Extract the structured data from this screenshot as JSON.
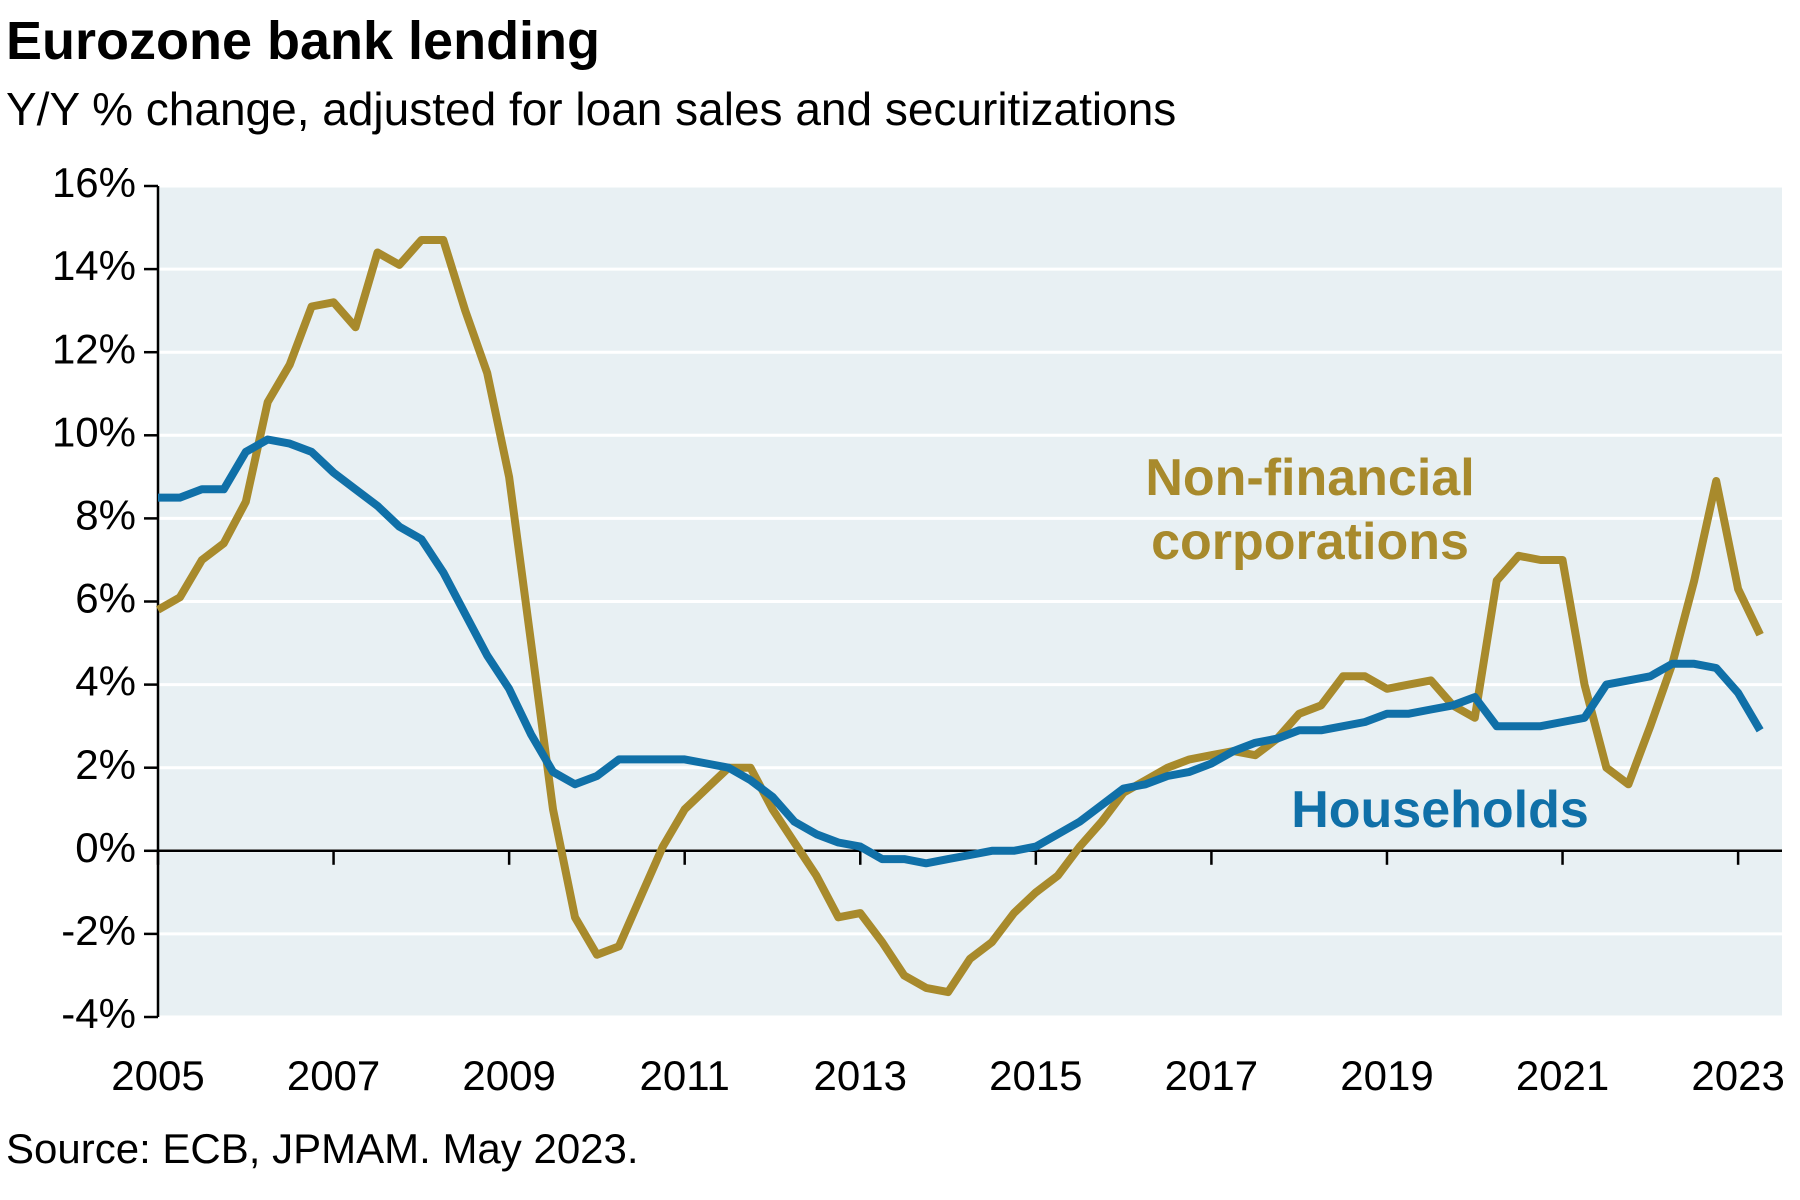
{
  "chart_data": {
    "type": "line",
    "title": "Eurozone bank lending",
    "subtitle": "Y/Y % change, adjusted for loan sales and securitizations",
    "source": "Source: ECB, JPMAM. May 2023.",
    "x": [
      2005,
      2005.25,
      2005.5,
      2005.75,
      2006,
      2006.25,
      2006.5,
      2006.75,
      2007,
      2007.25,
      2007.5,
      2007.75,
      2008,
      2008.25,
      2008.5,
      2008.75,
      2009,
      2009.25,
      2009.5,
      2009.75,
      2010,
      2010.25,
      2010.5,
      2010.75,
      2011,
      2011.25,
      2011.5,
      2011.75,
      2012,
      2012.25,
      2012.5,
      2012.75,
      2013,
      2013.25,
      2013.5,
      2013.75,
      2014,
      2014.25,
      2014.5,
      2014.75,
      2015,
      2015.25,
      2015.5,
      2015.75,
      2016,
      2016.25,
      2016.5,
      2016.75,
      2017,
      2017.25,
      2017.5,
      2017.75,
      2018,
      2018.25,
      2018.5,
      2018.75,
      2019,
      2019.25,
      2019.5,
      2019.75,
      2020,
      2020.25,
      2020.5,
      2020.75,
      2021,
      2021.25,
      2021.5,
      2021.75,
      2022,
      2022.25,
      2022.5,
      2022.75,
      2023,
      2023.25
    ],
    "series": [
      {
        "name": "Non-financial corporations",
        "color": "#a88a2c",
        "values": [
          5.8,
          6.1,
          7.0,
          7.4,
          8.4,
          10.8,
          11.7,
          13.1,
          13.2,
          12.6,
          14.4,
          14.1,
          14.7,
          14.7,
          13.0,
          11.5,
          9.0,
          5.0,
          1.0,
          -1.6,
          -2.5,
          -2.3,
          -1.1,
          0.1,
          1.0,
          1.5,
          2.0,
          2.0,
          1.0,
          0.2,
          -0.6,
          -1.6,
          -1.5,
          -2.2,
          -3.0,
          -3.3,
          -3.4,
          -2.6,
          -2.2,
          -1.5,
          -1.0,
          -0.6,
          0.1,
          0.7,
          1.4,
          1.7,
          2.0,
          2.2,
          2.3,
          2.4,
          2.3,
          2.7,
          3.3,
          3.5,
          4.2,
          4.2,
          3.9,
          4.0,
          4.1,
          3.5,
          3.2,
          6.5,
          7.1,
          7.0,
          7.0,
          4.0,
          2.0,
          1.6,
          3.0,
          4.5,
          6.5,
          8.9,
          6.3,
          5.2
        ]
      },
      {
        "name": "Households",
        "color": "#1070a8",
        "values": [
          8.5,
          8.5,
          8.7,
          8.7,
          9.6,
          9.9,
          9.8,
          9.6,
          9.1,
          8.7,
          8.3,
          7.8,
          7.5,
          6.7,
          5.7,
          4.7,
          3.9,
          2.8,
          1.9,
          1.6,
          1.8,
          2.2,
          2.2,
          2.2,
          2.2,
          2.1,
          2.0,
          1.7,
          1.3,
          0.7,
          0.4,
          0.2,
          0.1,
          -0.2,
          -0.2,
          -0.3,
          -0.2,
          -0.1,
          0.0,
          0.0,
          0.1,
          0.4,
          0.7,
          1.1,
          1.5,
          1.6,
          1.8,
          1.9,
          2.1,
          2.4,
          2.6,
          2.7,
          2.9,
          2.9,
          3.0,
          3.1,
          3.3,
          3.3,
          3.4,
          3.5,
          3.7,
          3.0,
          3.0,
          3.0,
          3.1,
          3.2,
          4.0,
          4.1,
          4.2,
          4.5,
          4.5,
          4.4,
          3.8,
          2.9
        ]
      }
    ],
    "xlim": [
      2005,
      2023.5
    ],
    "xticks": [
      2005,
      2007,
      2009,
      2011,
      2013,
      2015,
      2017,
      2019,
      2021,
      2023
    ],
    "ylim": [
      -4,
      16
    ],
    "yticks": [
      {
        "value": -4,
        "label": "-4%"
      },
      {
        "value": -2,
        "label": "-2%"
      },
      {
        "value": 0,
        "label": "0%"
      },
      {
        "value": 2,
        "label": "2%"
      },
      {
        "value": 4,
        "label": "4%"
      },
      {
        "value": 6,
        "label": "6%"
      },
      {
        "value": 8,
        "label": "8%"
      },
      {
        "value": 10,
        "label": "10%"
      },
      {
        "value": 12,
        "label": "12%"
      },
      {
        "value": 14,
        "label": "14%"
      },
      {
        "value": 16,
        "label": "16%"
      }
    ],
    "grid": true
  }
}
